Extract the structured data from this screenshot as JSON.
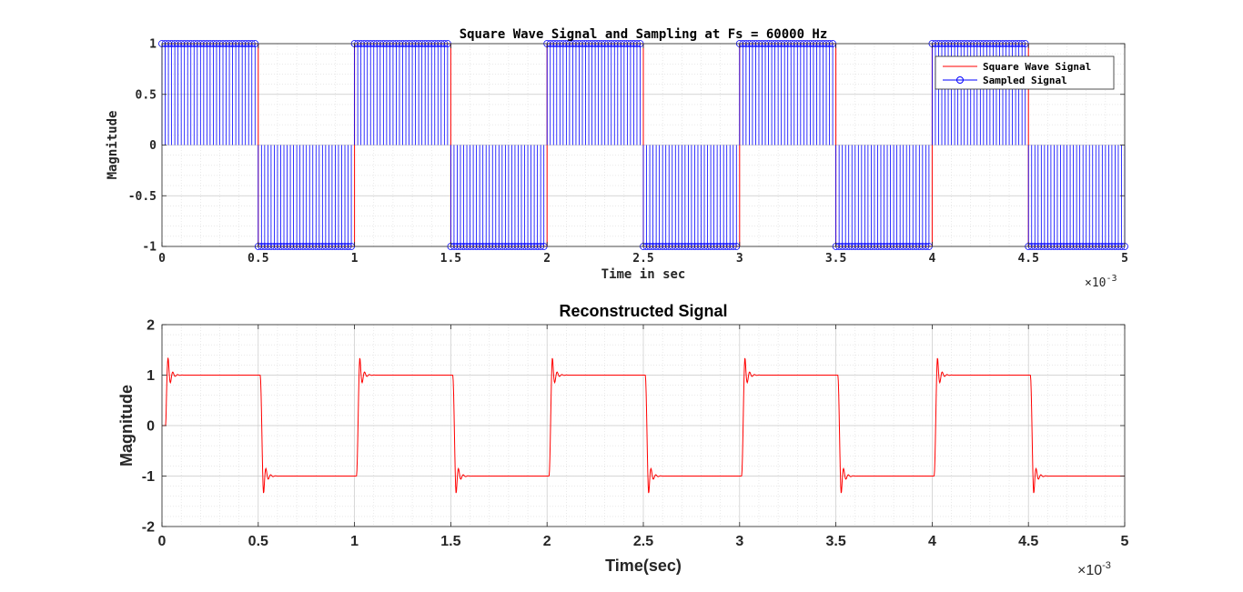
{
  "chart_data": [
    {
      "type": "line",
      "title": "Square Wave Signal and Sampling at Fs = 60000 Hz",
      "xlabel": "Time in sec",
      "ylabel": "Magnitude",
      "x_exponent_base": "×10",
      "x_exponent_power": "-3",
      "xlim": [
        0,
        5
      ],
      "ylim": [
        -1,
        1
      ],
      "x_tick_labels": [
        "0",
        "0.5",
        "1",
        "1.5",
        "2",
        "2.5",
        "3",
        "3.5",
        "4",
        "4.5",
        "5"
      ],
      "y_tick_labels": [
        "1",
        "0.5",
        "0",
        "-0.5",
        "-1"
      ],
      "grid": true,
      "minor_grid": true,
      "legend_position": "top-right",
      "signal": {
        "frequency_hz": 1000,
        "amplitude": 1,
        "duration_ms": 5
      },
      "sample_spacing_ms": 0.016667,
      "series": [
        {
          "name": "Square Wave Signal",
          "color": "#ff0000",
          "style": "line"
        },
        {
          "name": "Sampled Signal",
          "color": "#0000ff",
          "style": "stem-circle"
        }
      ]
    },
    {
      "type": "line",
      "title": "Reconstructed Signal",
      "xlabel": "Time(sec)",
      "ylabel": "Magnitude",
      "x_exponent_base": "×10",
      "x_exponent_power": "-3",
      "xlim": [
        0,
        5
      ],
      "ylim": [
        -2,
        2
      ],
      "x_tick_labels": [
        "0",
        "0.5",
        "1",
        "1.5",
        "2",
        "2.5",
        "3",
        "3.5",
        "4",
        "4.5",
        "5"
      ],
      "y_tick_labels": [
        "2",
        "1",
        "0",
        "-1",
        "-2"
      ],
      "grid": true,
      "minor_grid": true,
      "series": [
        {
          "name": "",
          "color": "#ff0000",
          "style": "line",
          "overshoot_peak": 1.35
        }
      ]
    }
  ]
}
